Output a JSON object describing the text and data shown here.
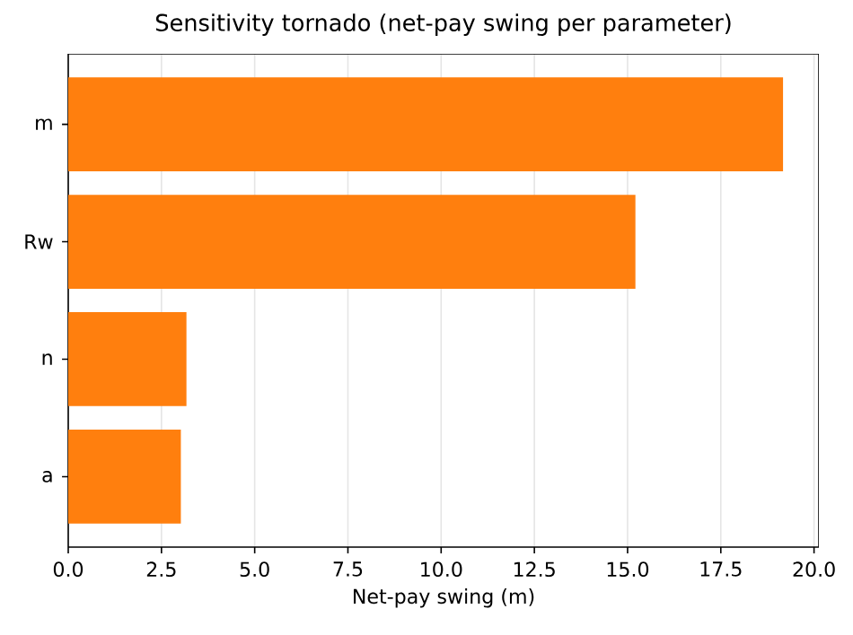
{
  "chart_data": {
    "type": "bar",
    "orientation": "horizontal",
    "title": "Sensitivity tornado (net-pay swing per parameter)",
    "xlabel": "Net-pay swing (m)",
    "categories": [
      "m",
      "Rw",
      "n",
      "a"
    ],
    "values": [
      19.17,
      15.21,
      3.17,
      3.02
    ],
    "color": "#ff7f0e",
    "xlim": [
      0,
      20.13
    ],
    "xticks": [
      {
        "value": 0,
        "label": "0.0"
      },
      {
        "value": 2.5,
        "label": "2.5"
      },
      {
        "value": 5,
        "label": "5.0"
      },
      {
        "value": 7.5,
        "label": "7.5"
      },
      {
        "value": 10,
        "label": "10.0"
      },
      {
        "value": 12.5,
        "label": "12.5"
      },
      {
        "value": 15,
        "label": "15.0"
      },
      {
        "value": 17.5,
        "label": "17.5"
      },
      {
        "value": 20,
        "label": "20.0"
      }
    ],
    "grid": "x"
  }
}
